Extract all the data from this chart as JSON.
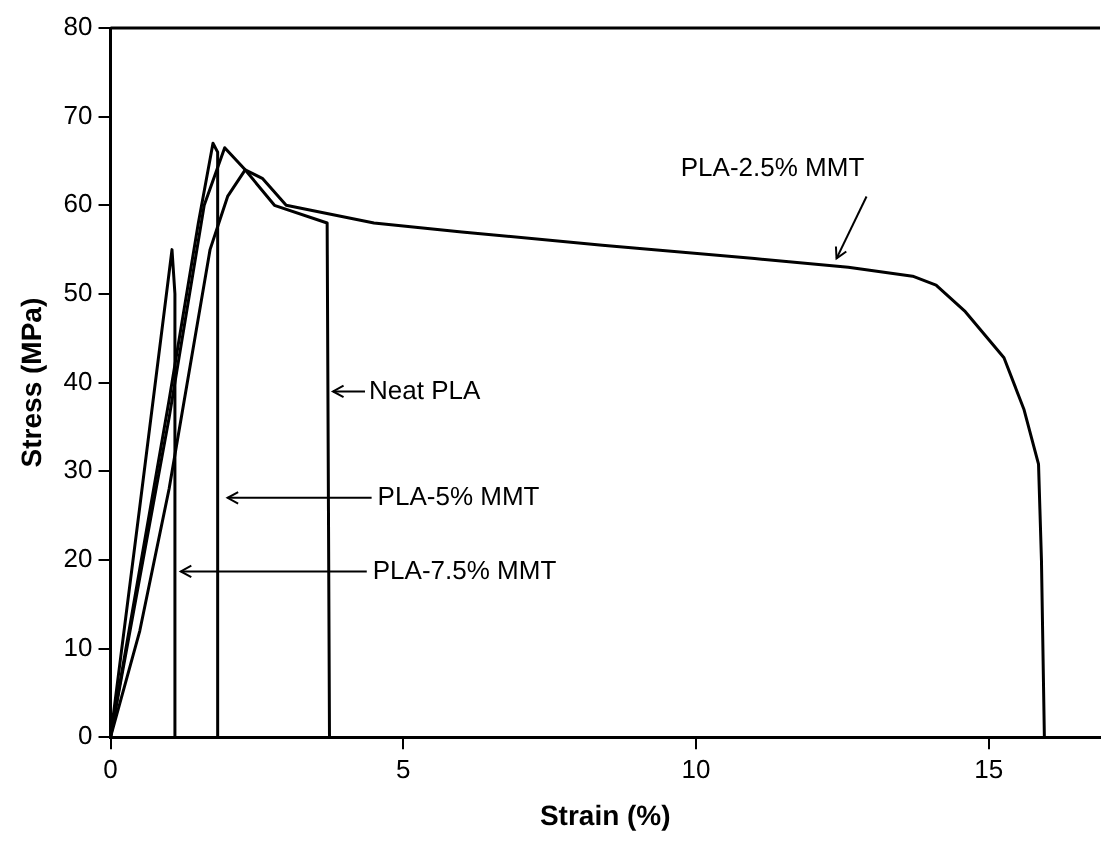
{
  "chart_data": {
    "type": "line",
    "xlabel": "Strain (%)",
    "ylabel": "Stress (MPa)",
    "xlim": [
      0,
      16.9
    ],
    "xticks": [
      0,
      5,
      10,
      15
    ],
    "ylim": [
      0,
      80
    ],
    "yticks": [
      0,
      10,
      20,
      30,
      40,
      50,
      60,
      70,
      80
    ],
    "grid": false,
    "legend": false,
    "marker": "none",
    "line_style": "solid",
    "series": [
      {
        "color": "#000000",
        "x": [
          0,
          0.5,
          1.05,
          1.1,
          1.1
        ],
        "values": [
          0,
          26,
          55,
          50,
          0
        ]
      },
      {
        "color": "#000000",
        "x": [
          0,
          0.5,
          1.0,
          1.5,
          1.75,
          1.83,
          1.83
        ],
        "values": [
          0,
          19,
          38,
          58,
          67,
          66,
          0
        ]
      },
      {
        "color": "#000000",
        "x": [
          0,
          1.0,
          1.6,
          1.95,
          2.3,
          2.8,
          3.7,
          3.74
        ],
        "values": [
          0,
          36,
          60,
          66.5,
          64,
          60,
          58,
          0
        ]
      },
      {
        "color": "#000000",
        "x": [
          0,
          0.5,
          1.0,
          1.7,
          2.0,
          2.3,
          2.6,
          3.0,
          4.5,
          6,
          8.4,
          11,
          12.6,
          13.7,
          14.1,
          14.6,
          15.26,
          15.6,
          15.85,
          15.9,
          15.95
        ],
        "values": [
          0,
          12,
          28,
          55,
          61,
          64,
          63,
          60,
          58,
          57,
          55.5,
          54,
          53,
          52,
          51,
          48,
          42.8,
          37,
          30.8,
          20,
          0
        ]
      }
    ],
    "annotations": [
      {
        "text": "PLA-7.5% MMT",
        "x": 1.2,
        "y": 18.7
      },
      {
        "text": "PLA-5% MMT",
        "x": 2.0,
        "y": 27
      },
      {
        "text": "Neat PLA",
        "x": 3.8,
        "y": 39
      },
      {
        "text": "PLA-2.5% MMT",
        "x": 12.4,
        "y": 54
      }
    ]
  }
}
